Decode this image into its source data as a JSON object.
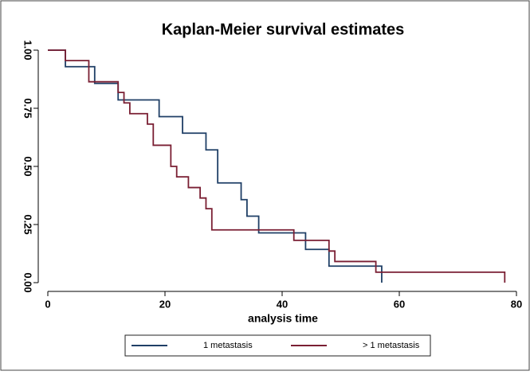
{
  "chart_data": {
    "type": "step",
    "title": "Kaplan-Meier survival estimates",
    "xlabel": "analysis time",
    "xlim": [
      0,
      80
    ],
    "ylim": [
      0,
      1
    ],
    "xticks": [
      0,
      20,
      40,
      60,
      80
    ],
    "yticks": [
      {
        "value": 0,
        "label": "0.00"
      },
      {
        "value": 0.25,
        "label": "0.25"
      },
      {
        "value": 0.5,
        "label": "0.50"
      },
      {
        "value": 0.75,
        "label": "0.75"
      },
      {
        "value": 1,
        "label": "1.00"
      }
    ],
    "series": [
      {
        "name": "1 metastasis",
        "color": "#1f3f66",
        "x": [
          0,
          3,
          8,
          12,
          19,
          23,
          27,
          29,
          33,
          34,
          36,
          44,
          48,
          57
        ],
        "values": [
          1,
          0.929,
          0.857,
          0.786,
          0.714,
          0.643,
          0.571,
          0.429,
          0.357,
          0.286,
          0.214,
          0.143,
          0.071,
          0
        ]
      },
      {
        "name": "> 1 metastasis",
        "color": "#7a1f33",
        "x": [
          0,
          3,
          7,
          12,
          13,
          14,
          17,
          18,
          21,
          22,
          24,
          26,
          27,
          28,
          42,
          48,
          49,
          56,
          78
        ],
        "values": [
          1,
          0.955,
          0.864,
          0.818,
          0.773,
          0.727,
          0.682,
          0.591,
          0.5,
          0.455,
          0.409,
          0.364,
          0.318,
          0.227,
          0.182,
          0.136,
          0.091,
          0.045,
          0
        ]
      }
    ]
  }
}
